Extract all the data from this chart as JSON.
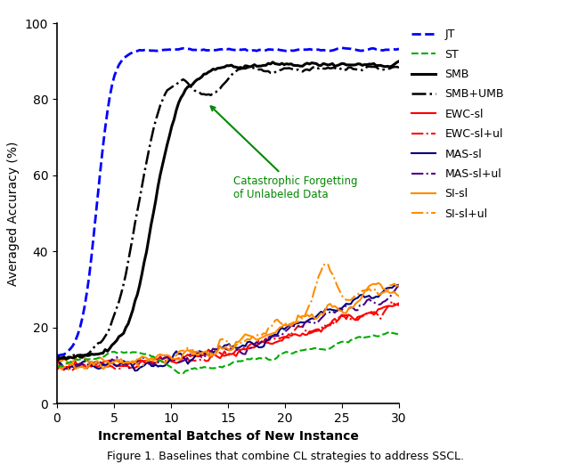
{
  "title": "",
  "xlabel": "Incremental Batches of New Instance",
  "ylabel": "Averaged Accuracy (%)",
  "xlim": [
    0,
    30
  ],
  "ylim": [
    0,
    100
  ],
  "xticks": [
    0,
    5,
    10,
    15,
    20,
    25,
    30
  ],
  "yticks": [
    0,
    20,
    40,
    60,
    80,
    100
  ],
  "figcaption": "Figure 1. Baselines that combine CL strategies to address SSCL.",
  "annotation_text": "Catastrophic Forgetting\nof Unlabeled Data",
  "series": {
    "JT": {
      "color": "#0000FF",
      "linestyle": "--",
      "linewidth": 2.0
    },
    "ST": {
      "color": "#00AA00",
      "linestyle": "--",
      "linewidth": 1.5
    },
    "SMB": {
      "color": "#000000",
      "linestyle": "-",
      "linewidth": 2.2
    },
    "SMB+UMB": {
      "color": "#000000",
      "linestyle": "-.",
      "linewidth": 1.8
    },
    "EWC-sl": {
      "color": "#FF0000",
      "linestyle": "-",
      "linewidth": 1.5
    },
    "EWC-sl+ul": {
      "color": "#FF0000",
      "linestyle": "-.",
      "linewidth": 1.5
    },
    "MAS-sl": {
      "color": "#000080",
      "linestyle": "-",
      "linewidth": 1.5
    },
    "MAS-sl+ul": {
      "color": "#4B0082",
      "linestyle": "-.",
      "linewidth": 1.5
    },
    "SI-sl": {
      "color": "#FF8C00",
      "linestyle": "-",
      "linewidth": 1.5
    },
    "SI-sl+ul": {
      "color": "#FF8C00",
      "linestyle": "-.",
      "linewidth": 1.5
    }
  },
  "background_color": "#ffffff",
  "figsize": [
    6.4,
    5.21
  ],
  "dpi": 100
}
